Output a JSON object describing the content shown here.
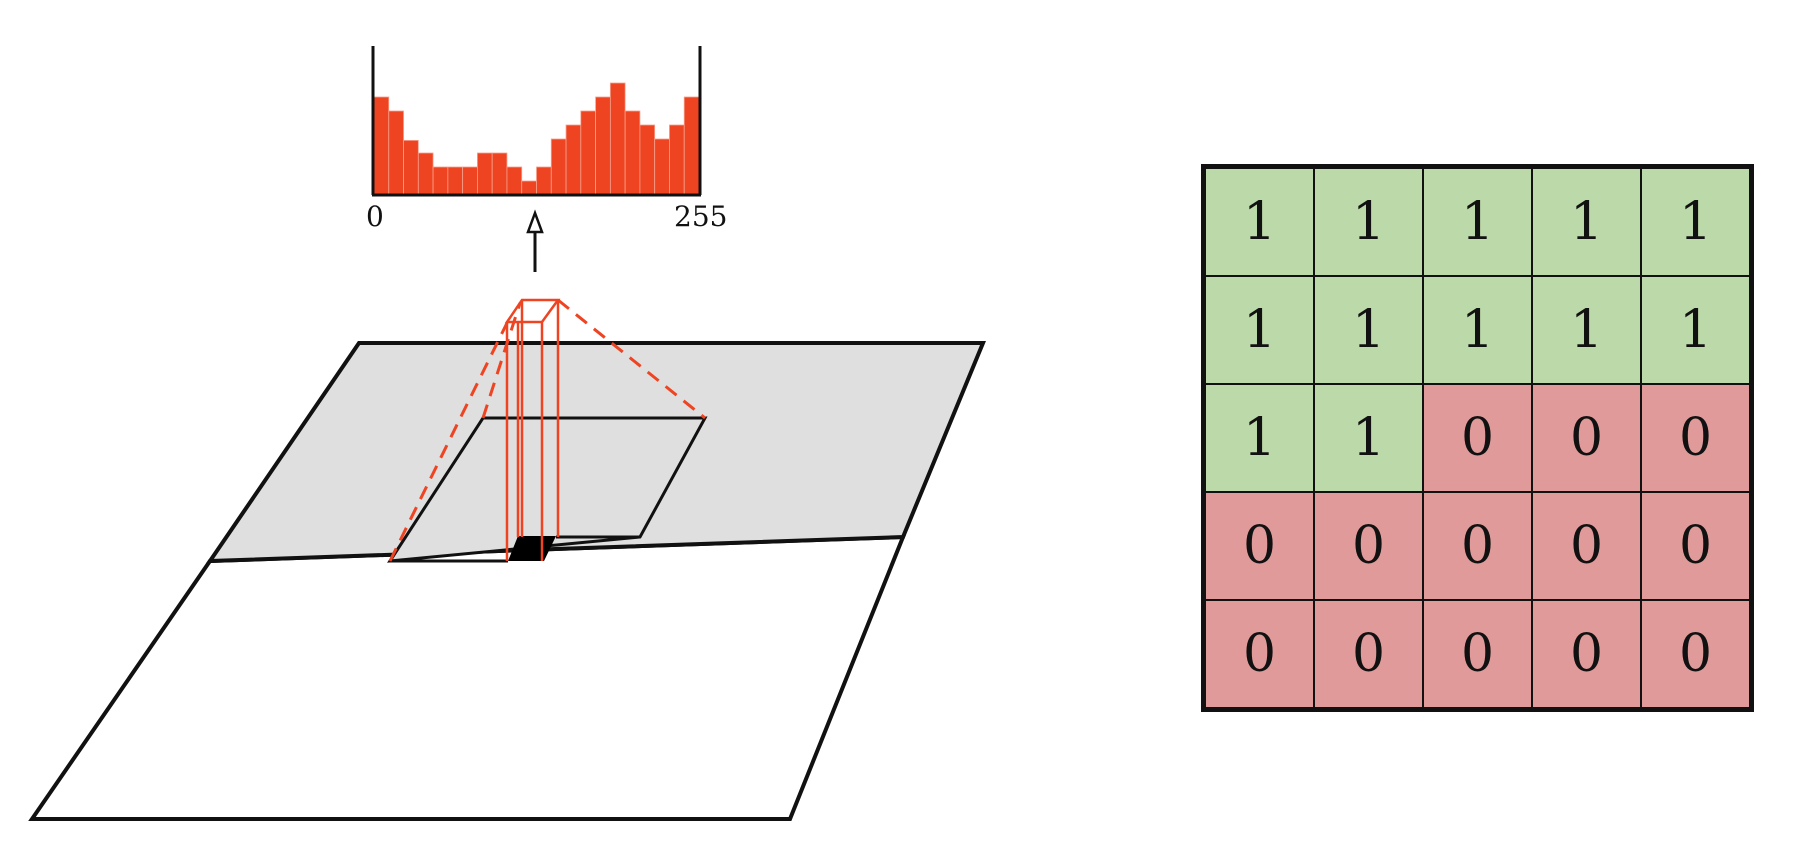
{
  "histogram": {
    "x_min_label": "0",
    "x_max_label": "255",
    "bin_heights": [
      0.7,
      0.6,
      0.39,
      0.3,
      0.2,
      0.2,
      0.2,
      0.3,
      0.3,
      0.2,
      0.1,
      0.2,
      0.4,
      0.5,
      0.6,
      0.7,
      0.8,
      0.6,
      0.5,
      0.4,
      0.5,
      0.7
    ],
    "bar_color": "#ee4422"
  },
  "grid": {
    "rows": [
      [
        "1",
        "1",
        "1",
        "1",
        "1"
      ],
      [
        "1",
        "1",
        "1",
        "1",
        "1"
      ],
      [
        "1",
        "1",
        "0",
        "0",
        "0"
      ],
      [
        "0",
        "0",
        "0",
        "0",
        "0"
      ],
      [
        "0",
        "0",
        "0",
        "0",
        "0"
      ]
    ],
    "color_one": "#bcd9a9",
    "color_zero": "#e09a9a"
  },
  "colors": {
    "plane_gray": "#dfdfdf",
    "accent_red": "#ee4422"
  }
}
